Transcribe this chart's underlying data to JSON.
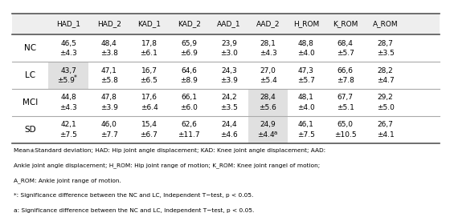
{
  "columns": [
    "",
    "HAD_1",
    "HAD_2",
    "KAD_1",
    "KAD_2",
    "AAD_1",
    "AAD_2",
    "H_ROM",
    "K_ROM",
    "A_ROM"
  ],
  "rows": [
    {
      "label": "NC",
      "values": [
        "46,5\n±4.3",
        "48,4\n±3.8",
        "17,8\n±6.1",
        "65,9\n±6.9",
        "23,9\n±3.0",
        "28,1\n±4.3",
        "48,8\n±4.0",
        "68,4\n±5.7",
        "28,7\n±3.5"
      ],
      "highlight": []
    },
    {
      "label": "LC",
      "values": [
        "43,7\n±5.9*",
        "47,1\n±5.8",
        "16,7\n±6.5",
        "64,6\n±8.9",
        "24,3\n±3.9",
        "27,0\n±5.4",
        "47,3\n±5.7",
        "66,6\n±7.8",
        "28,2\n±4.7"
      ],
      "highlight": [
        0
      ]
    },
    {
      "label": "MCI",
      "values": [
        "44,8\n±4.3",
        "47,8\n±3.9",
        "17,6\n±6.4",
        "66,1\n±6.0",
        "24,2\n±3.5",
        "28,4\n±5.6",
        "48,1\n±4.0",
        "67,7\n±5.1",
        "29,2\n±5.0"
      ],
      "highlight": [
        5
      ]
    },
    {
      "label": "SD",
      "values": [
        "42,1\n±7.5",
        "46,0\n±7.7",
        "15,4\n±6.7",
        "62,6\n±11.7",
        "24,4\n±4.6",
        "24,9\n±4.4a",
        "46,1\n±7.5",
        "65,0\n±10.5",
        "26,7\n±4.1"
      ],
      "highlight": [
        5
      ]
    }
  ],
  "footer": [
    "Mean±Standard deviation; HAD: Hip joint angle displacement; KAD: Knee joint angle displacement; AAD:",
    "Ankle joint angle displacement; H_ROM: Hip joint range of motion; K_ROM: Knee joint rangel of motion;",
    "A_ROM: Ankle joint range of motion.",
    "*: Significance difference between the NC and LC, Independent T−test, p < 0.05.",
    "a: Significance difference between the NC and LC, Independent T−test, p < 0.05."
  ],
  "highlight_color": "#e0e0e0",
  "header_line_color": "#555555",
  "row_line_color": "#aaaaaa",
  "bg_color": "#eeeeee"
}
